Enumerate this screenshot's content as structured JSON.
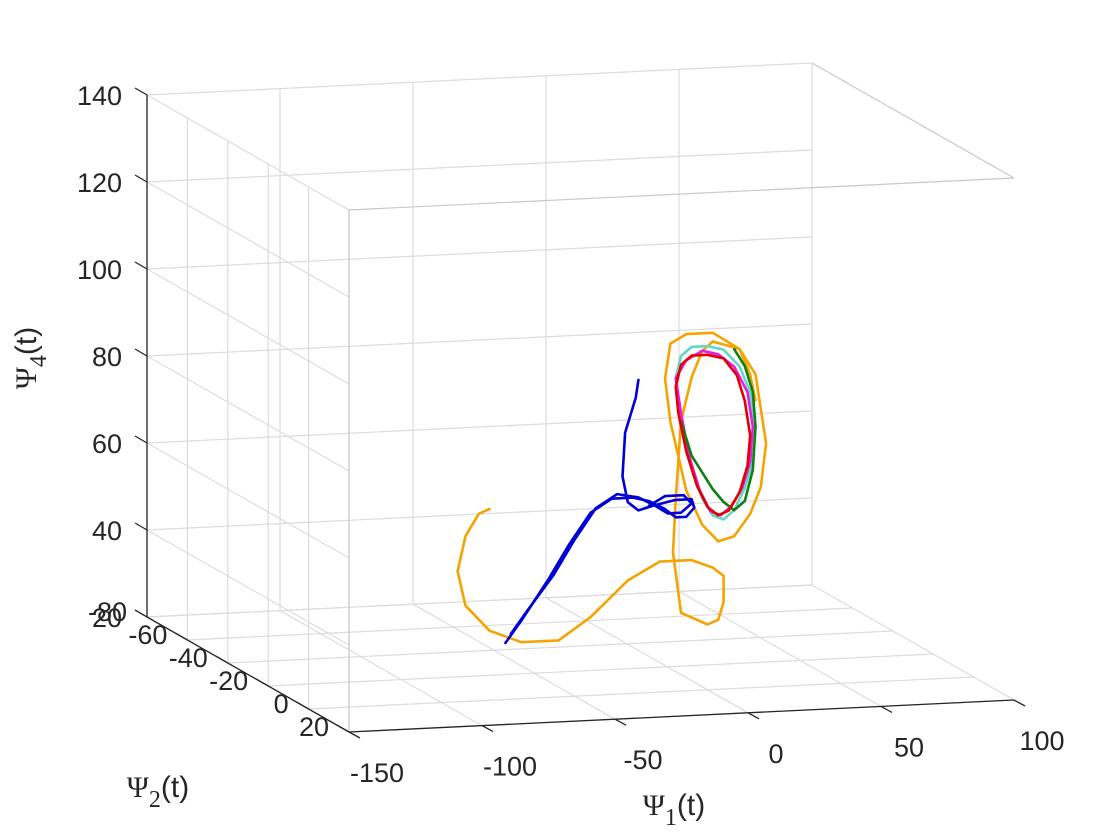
{
  "chart_data": {
    "type": "line",
    "dimensions": 3,
    "view": "3d-perspective",
    "grid": true,
    "axes": {
      "x": {
        "symbol": "Ψ",
        "sub": "1",
        "suffix": "(t)",
        "range": [
          -150,
          100
        ],
        "ticks": [
          -150,
          -100,
          -50,
          0,
          50,
          100
        ],
        "tick_labels": [
          "-150",
          "-100",
          "-50",
          "0",
          "50",
          "100"
        ]
      },
      "y": {
        "symbol": "Ψ",
        "sub": "2",
        "suffix": "(t)",
        "range": [
          -80,
          20
        ],
        "ticks": [
          -80,
          -60,
          -40,
          -20,
          0,
          20
        ],
        "tick_labels": [
          "-80",
          "-60",
          "-40",
          "-20",
          "0",
          "20"
        ]
      },
      "z": {
        "symbol": "Ψ",
        "sub": "4",
        "suffix": "(t)",
        "range": [
          20,
          140
        ],
        "ticks": [
          20,
          40,
          60,
          80,
          100,
          120,
          140
        ],
        "tick_labels": [
          "20",
          "40",
          "60",
          "80",
          "100",
          "120",
          "140"
        ]
      }
    },
    "series": [
      {
        "color": "#F5A300",
        "points": [
          [
            -82,
            0,
            64
          ],
          [
            -86,
            0,
            63
          ],
          [
            -91,
            0,
            58
          ],
          [
            -94,
            0,
            50
          ],
          [
            -91,
            0,
            42
          ],
          [
            -82,
            0,
            36
          ],
          [
            -70,
            0,
            33
          ],
          [
            -56,
            0,
            33
          ],
          [
            -44,
            0,
            38
          ],
          [
            -30,
            0,
            46
          ],
          [
            -18,
            0,
            50
          ],
          [
            -6,
            0,
            50
          ],
          [
            2,
            0,
            48
          ],
          [
            6,
            0,
            46
          ],
          [
            6,
            0,
            40
          ],
          [
            4,
            0,
            36
          ],
          [
            0,
            0,
            35
          ],
          [
            -10,
            0,
            38
          ],
          [
            -13,
            0,
            52
          ],
          [
            -12,
            0,
            64
          ],
          [
            -10,
            0,
            82
          ],
          [
            -6,
            0,
            92
          ],
          [
            -2,
            0,
            98
          ],
          [
            2,
            0,
            100
          ],
          [
            12,
            0,
            98
          ],
          [
            18,
            0,
            92
          ],
          [
            20,
            0,
            84
          ],
          [
            22,
            0,
            76
          ],
          [
            20,
            0,
            66
          ],
          [
            16,
            0,
            60
          ],
          [
            10,
            0,
            55
          ],
          [
            4,
            0,
            54
          ],
          [
            -2,
            0,
            58
          ],
          [
            -8,
            0,
            66
          ],
          [
            -14,
            0,
            82
          ],
          [
            -16,
            0,
            92
          ],
          [
            -14,
            0,
            100
          ],
          [
            -8,
            0,
            102
          ],
          [
            2,
            0,
            102
          ],
          [
            12,
            0,
            98
          ],
          [
            16,
            0,
            92
          ],
          [
            18,
            0,
            86
          ]
        ]
      },
      {
        "color": "#0000D6",
        "points": [
          [
            -76,
            0,
            33
          ],
          [
            -70,
            0,
            38
          ],
          [
            -60,
            0,
            47
          ],
          [
            -52,
            0,
            55
          ],
          [
            -44,
            0,
            62
          ],
          [
            -36,
            0,
            65
          ],
          [
            -28,
            0,
            65
          ],
          [
            -22,
            0,
            64
          ],
          [
            -16,
            0,
            62
          ],
          [
            -12,
            0,
            60
          ],
          [
            -8,
            0,
            60
          ],
          [
            -5,
            0,
            62
          ],
          [
            -6,
            0,
            64
          ],
          [
            -12,
            0,
            64
          ],
          [
            -20,
            0,
            63
          ],
          [
            -26,
            0,
            62
          ],
          [
            -30,
            0,
            64
          ],
          [
            -32,
            0,
            70
          ],
          [
            -31,
            0,
            80
          ],
          [
            -27,
            0,
            88
          ],
          [
            -26,
            0,
            92
          ]
        ]
      },
      {
        "color": "#0000D6",
        "points": [
          [
            -74,
            0,
            35
          ],
          [
            -68,
            0,
            40
          ],
          [
            -58,
            0,
            48
          ],
          [
            -50,
            0,
            56
          ],
          [
            -42,
            0,
            63
          ],
          [
            -34,
            0,
            66
          ],
          [
            -26,
            0,
            65
          ],
          [
            -20,
            0,
            63
          ],
          [
            -15,
            0,
            61
          ],
          [
            -10,
            0,
            61
          ],
          [
            -6,
            0,
            63
          ],
          [
            -9,
            0,
            65
          ],
          [
            -16,
            0,
            65
          ],
          [
            -22,
            0,
            63
          ]
        ]
      },
      {
        "color": "#66D6C6",
        "points": [
          [
            -12,
            0,
            92
          ],
          [
            -10,
            0,
            97
          ],
          [
            -6,
            0,
            99
          ],
          [
            0,
            0,
            99
          ],
          [
            6,
            0,
            98
          ],
          [
            12,
            0,
            94
          ],
          [
            16,
            0,
            88
          ],
          [
            18,
            0,
            80
          ],
          [
            17,
            0,
            72
          ],
          [
            14,
            0,
            66
          ],
          [
            10,
            0,
            61
          ],
          [
            6,
            0,
            59
          ],
          [
            2,
            0,
            60
          ],
          [
            -2,
            0,
            64
          ],
          [
            -6,
            0,
            72
          ],
          [
            -10,
            0,
            82
          ],
          [
            -12,
            0,
            92
          ]
        ]
      },
      {
        "color": "#E020E0",
        "points": [
          [
            -12,
            0,
            92
          ],
          [
            -8,
            0,
            96
          ],
          [
            -2,
            0,
            98
          ],
          [
            4,
            0,
            97
          ],
          [
            10,
            0,
            94
          ],
          [
            15,
            0,
            88
          ],
          [
            17,
            0,
            80
          ],
          [
            16,
            0,
            72
          ],
          [
            13,
            0,
            66
          ],
          [
            9,
            0,
            62
          ],
          [
            5,
            0,
            60
          ],
          [
            1,
            0,
            61
          ],
          [
            -3,
            0,
            66
          ],
          [
            -7,
            0,
            74
          ],
          [
            -10,
            0,
            84
          ],
          [
            -12,
            0,
            92
          ]
        ]
      },
      {
        "color": "#108010",
        "points": [
          [
            -10,
            0,
            82
          ],
          [
            -8,
            0,
            78
          ],
          [
            -6,
            0,
            74
          ],
          [
            -2,
            0,
            70
          ],
          [
            2,
            0,
            66
          ],
          [
            6,
            0,
            63
          ],
          [
            10,
            0,
            61
          ],
          [
            14,
            0,
            63
          ],
          [
            17,
            0,
            70
          ],
          [
            18,
            0,
            80
          ],
          [
            17,
            0,
            88
          ],
          [
            14,
            0,
            94
          ],
          [
            10,
            0,
            98
          ]
        ]
      },
      {
        "color": "#E00000",
        "points": [
          [
            -12,
            0,
            90
          ],
          [
            -10,
            0,
            95
          ],
          [
            -6,
            0,
            97
          ],
          [
            0,
            0,
            97
          ],
          [
            6,
            0,
            96
          ],
          [
            11,
            0,
            92
          ],
          [
            14,
            0,
            86
          ],
          [
            16,
            0,
            78
          ],
          [
            15,
            0,
            71
          ],
          [
            12,
            0,
            65
          ],
          [
            8,
            0,
            61
          ],
          [
            4,
            0,
            60
          ],
          [
            0,
            0,
            62
          ],
          [
            -4,
            0,
            67
          ],
          [
            -8,
            0,
            75
          ],
          [
            -11,
            0,
            84
          ],
          [
            -12,
            0,
            90
          ]
        ]
      }
    ]
  }
}
